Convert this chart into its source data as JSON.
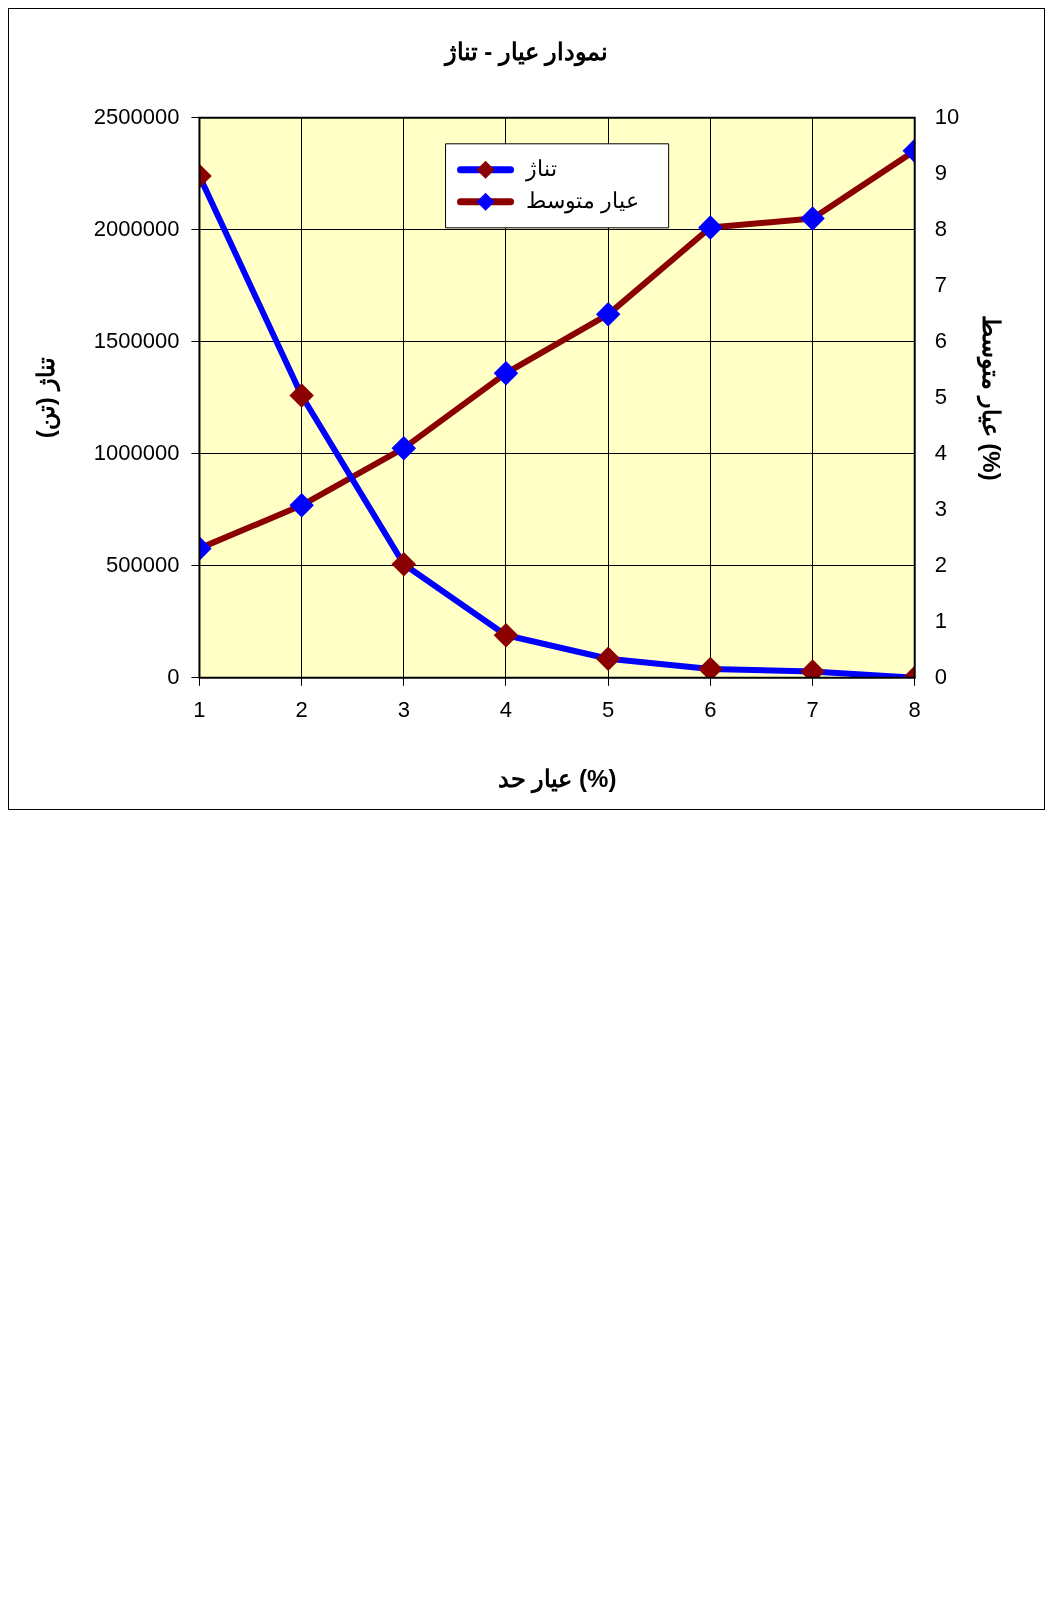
{
  "chart_data": {
    "type": "line",
    "title": "نمودار عیار - تناژ",
    "xlabel": "عیار حد (%)",
    "ylabel": "تناژ (تن)",
    "y2label": "عیار متوسط (%)",
    "x": [
      1,
      2,
      3,
      4,
      5,
      6,
      7,
      8
    ],
    "xlim": [
      1,
      8
    ],
    "xticks": [
      1,
      2,
      3,
      4,
      5,
      6,
      7,
      8
    ],
    "ylim": [
      0,
      2500000
    ],
    "yticks": [
      0,
      500000,
      1000000,
      1500000,
      2000000,
      2500000
    ],
    "y2lim": [
      0,
      10
    ],
    "y2ticks": [
      0,
      1,
      2,
      3,
      4,
      5,
      6,
      7,
      8,
      9,
      10
    ],
    "grid": true,
    "legend": "top",
    "marker": "diamond",
    "line_style": "solid",
    "series": [
      {
        "name": "تناژ",
        "color": "#0000ff",
        "colors": [
          "#8b0000",
          "#8b0000",
          "#8b0000",
          "#8b0000",
          "#8b0000",
          "#8b0000",
          "#8b0000",
          "#8b0000"
        ],
        "values": [
          2240000,
          1260000,
          507000,
          190000,
          85000,
          39000,
          28000,
          0
        ]
      },
      {
        "name": "عیار متوسط",
        "color": "#8b0000",
        "axis": "y2",
        "colors": [
          "#0000ff",
          "#0000ff",
          "#0000ff",
          "#0000ff",
          "#0000ff",
          "#0000ff",
          "#0000ff",
          "#0000ff"
        ],
        "values": [
          2.31,
          3.08,
          4.1,
          5.44,
          6.49,
          8.04,
          8.2,
          9.41
        ]
      }
    ]
  }
}
